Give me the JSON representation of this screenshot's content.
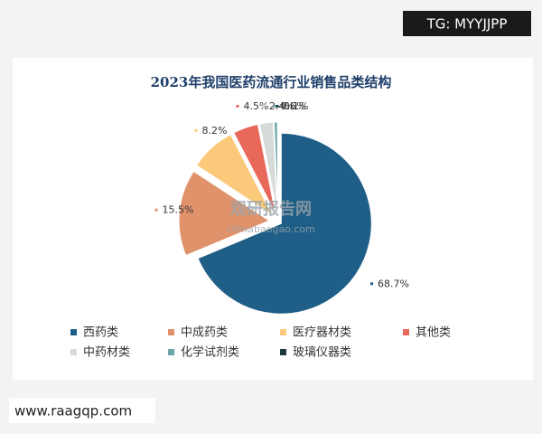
{
  "chart_data": {
    "type": "pie",
    "title": "2023年我国医药流通行业销售品类结构",
    "categories": [
      "西药类",
      "中成药类",
      "医疗器材类",
      "其他类",
      "中药材类",
      "化学试剂类",
      "玻璃仪器类"
    ],
    "values": [
      68.7,
      15.5,
      8.2,
      4.5,
      2.4,
      0.6,
      0.1
    ],
    "value_labels": [
      "68.7%",
      "15.5%",
      "8.2%",
      "4.5%",
      "2.4%",
      "0.6%",
      "0.1%"
    ],
    "colors": [
      "#1f5f87",
      "#e0936b",
      "#fbc97a",
      "#e8685a",
      "#d6dbd8",
      "#6aa7a8",
      "#1d3b3a"
    ],
    "legend": "bottom"
  },
  "overlays": {
    "corner_tag": "TG: MYYJJPP",
    "site": "www.raagqp.com",
    "watermark": [
      "观研报告网",
      "chinabaogao.com"
    ]
  }
}
